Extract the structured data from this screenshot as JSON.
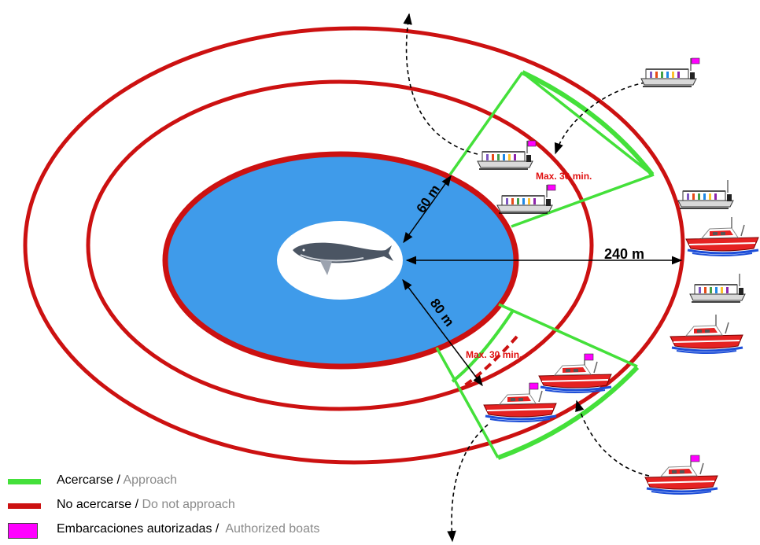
{
  "labels": {
    "dist_60": "60 m",
    "dist_80": "80 m",
    "dist_240": "240 m",
    "max_top": "Max. 30 min.",
    "max_bottom": "Max. 30 min."
  },
  "legend": {
    "approach": {
      "es": "Acercarse",
      "sep": " / ",
      "en": "Approach"
    },
    "no_approach": {
      "es": "No acercarse",
      "sep": " / ",
      "en": "Do not approach"
    },
    "boats": {
      "es": "Embarcaciones autorizadas",
      "sep": " /  ",
      "en": "Authorized boats"
    }
  },
  "colors": {
    "approach": "#44e03a",
    "no_approach": "#cc1111",
    "inner_zone": "#3f9bea",
    "authorized_flag": "#ff00ff",
    "max_text": "#e01010"
  },
  "icons": {
    "whale": "humpback-whale-icon",
    "boat_tour": "tour-boat-icon",
    "boat_motor": "red-motorboat-icon"
  }
}
